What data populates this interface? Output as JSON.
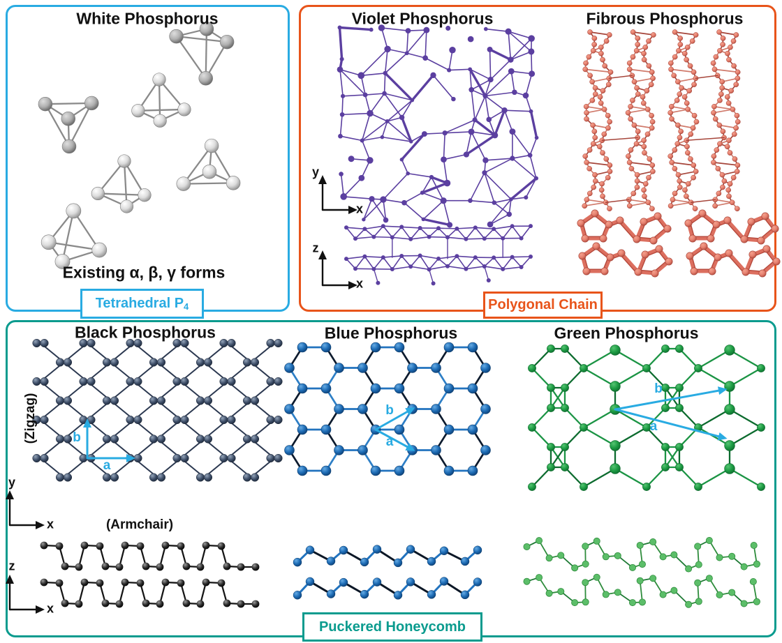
{
  "colors": {
    "accent_cyan": "#29ABE2",
    "accent_orange": "#E8541A",
    "accent_teal": "#0A9B8E",
    "violet": "#5B3FA0",
    "fibrous_node": "#E5806F",
    "fibrous_bond": "#A6453A",
    "black_node": "#3C4C66",
    "black_bond": "#2B3850",
    "blue_node": "#1E6CB5",
    "blue_bond": "#0D1B2E",
    "green_node": "#1E9C44",
    "green_bond": "#1B9444",
    "ink": "#161616",
    "sphere_bond": "#8A8A8A"
  },
  "white_panel": {
    "title": "White Phosphorus",
    "caption": "Existing α, β, γ forms",
    "tag_main": "Tetrahedral P",
    "tag_sub": "4"
  },
  "polygonal_panel": {
    "violet_title": "Violet Phosphorus",
    "fibrous_title": "Fibrous Phosphorus",
    "tag": "Polygonal Chain"
  },
  "puckered_panel": {
    "black_title": "Black Phosphorus",
    "blue_title": "Blue Phosphorus",
    "green_title": "Green Phosphorus",
    "zigzag": "(Zigzag)",
    "armchair": "(Armchair)",
    "tag": "Puckered Honeycomb"
  },
  "axis_labels": {
    "x": "x",
    "y": "y",
    "z": "z"
  },
  "vector_labels": {
    "a": "a",
    "b": "b"
  }
}
